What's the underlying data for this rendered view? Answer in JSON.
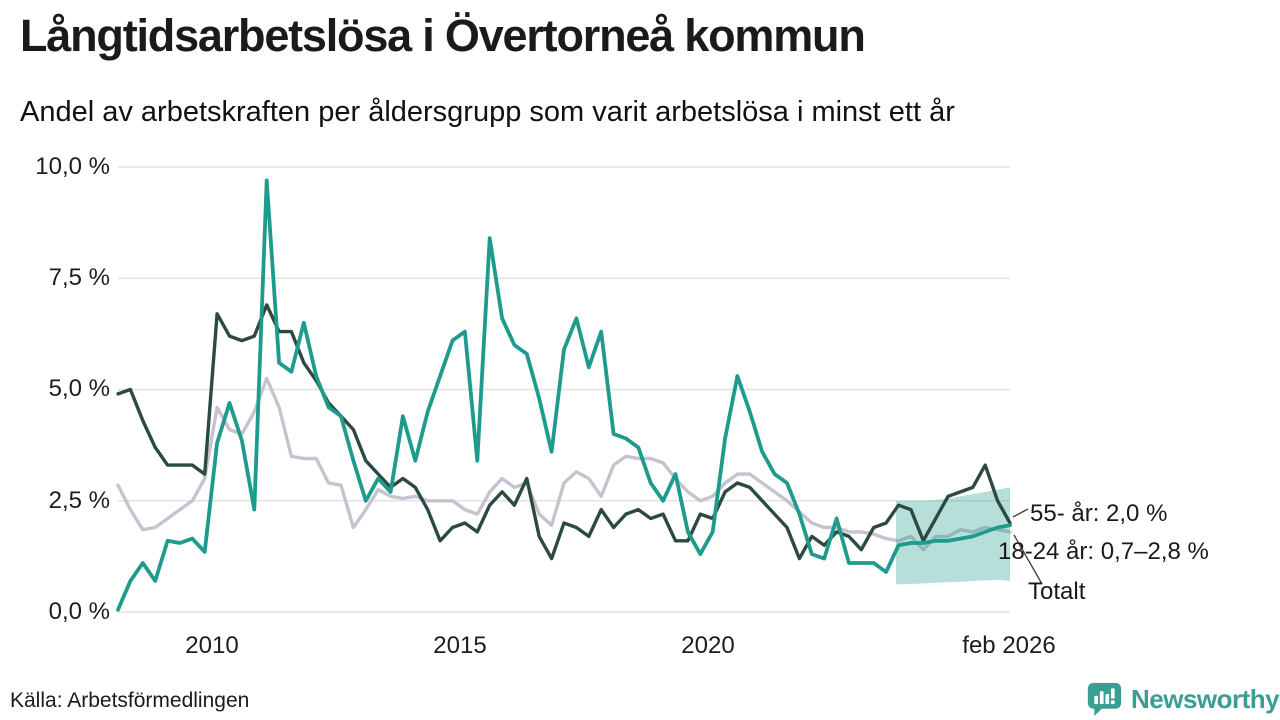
{
  "header": {
    "title": "Långtidsarbetslösa i Övertorneå kommun",
    "subtitle": "Andel av arbetskraften per åldersgrupp som varit arbetslösa i minst ett år"
  },
  "footer": {
    "source": "Källa: Arbetsförmedlingen",
    "brand": "Newsworthy",
    "brand_color": "#3b9e92"
  },
  "chart_data": {
    "type": "line",
    "title": "Långtidsarbetslösa i Övertorneå kommun",
    "subtitle": "Andel av arbetskraften per åldersgrupp som varit arbetslösa i minst ett år",
    "unit": "%",
    "grid": true,
    "legend_position": "right-annotations",
    "xlim": [
      2008.1,
      2026.1
    ],
    "ylim": [
      0,
      10
    ],
    "y_axis_ticks": [
      {
        "label": "10,0 %",
        "v": 10
      },
      {
        "label": "7,5 %",
        "v": 7.5
      },
      {
        "label": "5,0 %",
        "v": 5
      },
      {
        "label": "2,5 %",
        "v": 2.5
      },
      {
        "label": "0,0 %",
        "v": 0
      }
    ],
    "x_axis_ticks": [
      {
        "label": "2010",
        "t": 2010
      },
      {
        "label": "2015",
        "t": 2015
      },
      {
        "label": "2020",
        "t": 2020
      },
      {
        "label": "feb 2026",
        "t": 2026.08
      }
    ],
    "x": [
      2008.1,
      2008.35,
      2008.6,
      2008.85,
      2009.1,
      2009.35,
      2009.6,
      2009.85,
      2010.1,
      2010.35,
      2010.6,
      2010.85,
      2011.1,
      2011.35,
      2011.6,
      2011.85,
      2012.1,
      2012.35,
      2012.6,
      2012.85,
      2013.1,
      2013.35,
      2013.6,
      2013.85,
      2014.1,
      2014.35,
      2014.6,
      2014.85,
      2015.1,
      2015.35,
      2015.6,
      2015.85,
      2016.1,
      2016.35,
      2016.6,
      2016.85,
      2017.1,
      2017.35,
      2017.6,
      2017.85,
      2018.1,
      2018.35,
      2018.6,
      2018.85,
      2019.1,
      2019.35,
      2019.6,
      2019.85,
      2020.1,
      2020.35,
      2020.6,
      2020.85,
      2021.1,
      2021.35,
      2021.6,
      2021.85,
      2022.1,
      2022.35,
      2022.6,
      2022.85,
      2023.1,
      2023.35,
      2023.6,
      2023.85,
      2024.1,
      2024.35,
      2024.6,
      2024.85,
      2025.1,
      2025.35,
      2025.6,
      2025.85,
      2026.1
    ],
    "series": [
      {
        "name": "Totalt",
        "annotation": "Totalt",
        "color": "#c6c3d0",
        "values": [
          2.85,
          2.3,
          1.85,
          1.9,
          2.1,
          2.3,
          2.5,
          3.0,
          4.6,
          4.1,
          4.0,
          4.5,
          5.25,
          4.6,
          3.5,
          3.45,
          3.45,
          2.9,
          2.85,
          1.9,
          2.3,
          2.75,
          2.6,
          2.55,
          2.6,
          2.5,
          2.5,
          2.5,
          2.3,
          2.2,
          2.7,
          3.0,
          2.8,
          2.9,
          2.2,
          1.95,
          2.9,
          3.15,
          3.0,
          2.6,
          3.3,
          3.5,
          3.45,
          3.45,
          3.35,
          3.0,
          2.7,
          2.5,
          2.6,
          2.9,
          3.1,
          3.1,
          2.9,
          2.7,
          2.5,
          2.25,
          2.0,
          1.9,
          1.9,
          1.8,
          1.8,
          1.75,
          1.65,
          1.6,
          1.7,
          1.4,
          1.7,
          1.7,
          1.85,
          1.8,
          1.9,
          1.85,
          1.8
        ]
      },
      {
        "name": "55- år",
        "annotation": "55- år: 2,0 %",
        "last_value": "2,0 %",
        "color": "#2d4a42",
        "values": [
          4.9,
          5.0,
          4.3,
          3.7,
          3.3,
          3.3,
          3.3,
          3.1,
          6.7,
          6.2,
          6.1,
          6.2,
          6.9,
          6.3,
          6.3,
          5.6,
          5.2,
          4.7,
          4.4,
          4.1,
          3.4,
          3.1,
          2.8,
          3.0,
          2.8,
          2.3,
          1.6,
          1.9,
          2.0,
          1.8,
          2.4,
          2.7,
          2.4,
          3.0,
          1.7,
          1.2,
          2.0,
          1.9,
          1.7,
          2.3,
          1.9,
          2.2,
          2.3,
          2.1,
          2.2,
          1.6,
          1.6,
          2.2,
          2.1,
          2.7,
          2.9,
          2.8,
          2.5,
          2.2,
          1.9,
          1.2,
          1.7,
          1.5,
          1.8,
          1.7,
          1.4,
          1.9,
          2.0,
          2.4,
          2.3,
          1.6,
          2.1,
          2.6,
          2.7,
          2.8,
          3.3,
          2.5,
          2.0
        ]
      },
      {
        "name": "18-24 år",
        "annotation": "18-24 år: 0,7–2,8 %",
        "last_value": "0,7–2,8 %",
        "color": "#1e9b8c",
        "values": [
          0.05,
          0.7,
          1.1,
          0.7,
          1.6,
          1.55,
          1.65,
          1.35,
          3.8,
          4.7,
          3.85,
          2.3,
          9.7,
          5.6,
          5.4,
          6.5,
          5.3,
          4.6,
          4.4,
          3.4,
          2.5,
          3.0,
          2.7,
          4.4,
          3.4,
          4.5,
          5.3,
          6.1,
          6.3,
          3.4,
          8.4,
          6.6,
          6.0,
          5.8,
          4.8,
          3.6,
          5.9,
          6.6,
          5.5,
          6.3,
          4.0,
          3.9,
          3.7,
          2.9,
          2.5,
          3.1,
          1.8,
          1.3,
          1.8,
          3.9,
          5.3,
          4.5,
          3.6,
          3.1,
          2.9,
          2.2,
          1.3,
          1.2,
          2.1,
          1.1,
          1.1,
          1.1,
          0.9,
          1.5,
          1.55,
          1.55,
          1.6,
          1.6,
          1.65,
          1.7,
          1.8,
          1.9,
          1.95
        ]
      }
    ],
    "forecast_band": {
      "description": "18-24 år prognosintervall",
      "color": "#1e9b8c",
      "opacity": 0.32,
      "x": [
        2023.8,
        2024.1,
        2024.35,
        2024.6,
        2024.85,
        2025.1,
        2025.35,
        2025.6,
        2025.85,
        2026.1
      ],
      "top": [
        2.5,
        2.5,
        2.5,
        2.52,
        2.55,
        2.6,
        2.65,
        2.7,
        2.75,
        2.8
      ],
      "bottom": [
        0.62,
        0.63,
        0.64,
        0.66,
        0.67,
        0.68,
        0.7,
        0.71,
        0.72,
        0.7
      ]
    }
  }
}
